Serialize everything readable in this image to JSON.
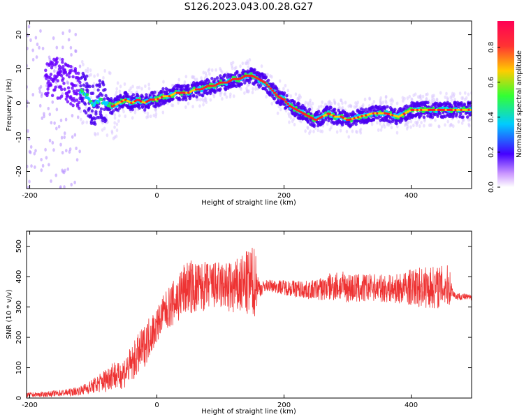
{
  "title": "S126.2023.043.00.28.G27",
  "chart_data": [
    {
      "type": "heatmap",
      "xlabel": "Height of straight line (km)",
      "ylabel": "Frequency (Hz)",
      "xlim": [
        -205,
        495
      ],
      "ylim": [
        -25,
        24
      ],
      "xticks": [
        -200,
        0,
        200,
        400
      ],
      "yticks": [
        -20,
        -10,
        0,
        10,
        20
      ],
      "grid": false,
      "ridge": {
        "x": [
          -190,
          -170,
          -150,
          -130,
          -110,
          -100,
          -90,
          -80,
          -70,
          -60,
          -50,
          -40,
          -30,
          -20,
          -10,
          0,
          10,
          20,
          30,
          40,
          50,
          60,
          70,
          80,
          90,
          100,
          110,
          120,
          130,
          140,
          150,
          160,
          170,
          180,
          190,
          200,
          210,
          220,
          230,
          240,
          250,
          260,
          270,
          280,
          290,
          300,
          320,
          340,
          360,
          380,
          400,
          420,
          440,
          460,
          480,
          495
        ],
        "frequency": [
          9,
          8,
          7,
          5,
          2,
          -1,
          1,
          0,
          -1,
          0,
          1,
          0,
          1,
          0,
          1,
          1,
          2,
          2,
          3,
          3,
          3,
          4,
          4,
          5,
          5,
          6,
          6,
          7,
          7,
          8,
          8,
          7,
          6,
          4,
          2,
          1,
          -1,
          -2,
          -3,
          -4,
          -5,
          -4,
          -3,
          -4,
          -4,
          -5,
          -4,
          -3,
          -3,
          -4,
          -2,
          -2,
          -2,
          -2,
          -2,
          -2
        ]
      },
      "colorbar": {
        "label": "Normalized spectral amplitude",
        "range": [
          0.0,
          0.95
        ],
        "ticks": [
          "0.0",
          "0.2",
          "0.4",
          "0.6",
          "0.8"
        ],
        "colormap": [
          "#ffffff",
          "#cc99ff",
          "#4400ff",
          "#00ccff",
          "#33ff33",
          "#ffcc00",
          "#ff3333",
          "#ff0055"
        ]
      }
    },
    {
      "type": "line",
      "xlabel": "Height of straight line (km)",
      "ylabel": "SNR (10 * v/v)",
      "xlim": [
        -205,
        495
      ],
      "ylim": [
        0,
        550
      ],
      "xticks": [
        -200,
        0,
        200,
        400
      ],
      "yticks": [
        0,
        100,
        200,
        300,
        400,
        500
      ],
      "grid": false,
      "series": [
        {
          "color": "#ee3333",
          "x": [
            -205,
            -180,
            -160,
            -140,
            -120,
            -100,
            -80,
            -70,
            -60,
            -50,
            -40,
            -30,
            -20,
            -10,
            0,
            10,
            20,
            30,
            40,
            50,
            60,
            80,
            100,
            120,
            140,
            155,
            160,
            165,
            170,
            180,
            200,
            220,
            240,
            260,
            280,
            300,
            320,
            340,
            360,
            380,
            400,
            420,
            440,
            460,
            465,
            470,
            480,
            495
          ],
          "mean": [
            10,
            12,
            15,
            18,
            25,
            40,
            60,
            80,
            70,
            90,
            110,
            140,
            170,
            210,
            240,
            280,
            300,
            320,
            350,
            370,
            360,
            370,
            370,
            360,
            375,
            385,
            365,
            360,
            370,
            370,
            365,
            360,
            355,
            360,
            370,
            365,
            360,
            365,
            360,
            360,
            365,
            365,
            365,
            370,
            350,
            335,
            335,
            330
          ],
          "spread": [
            8,
            8,
            10,
            12,
            15,
            25,
            40,
            50,
            45,
            55,
            60,
            70,
            70,
            70,
            60,
            60,
            70,
            80,
            90,
            90,
            90,
            80,
            80,
            90,
            110,
            120,
            30,
            25,
            20,
            20,
            25,
            30,
            30,
            40,
            50,
            50,
            50,
            45,
            45,
            50,
            60,
            70,
            70,
            70,
            15,
            12,
            12,
            10
          ]
        }
      ]
    }
  ]
}
